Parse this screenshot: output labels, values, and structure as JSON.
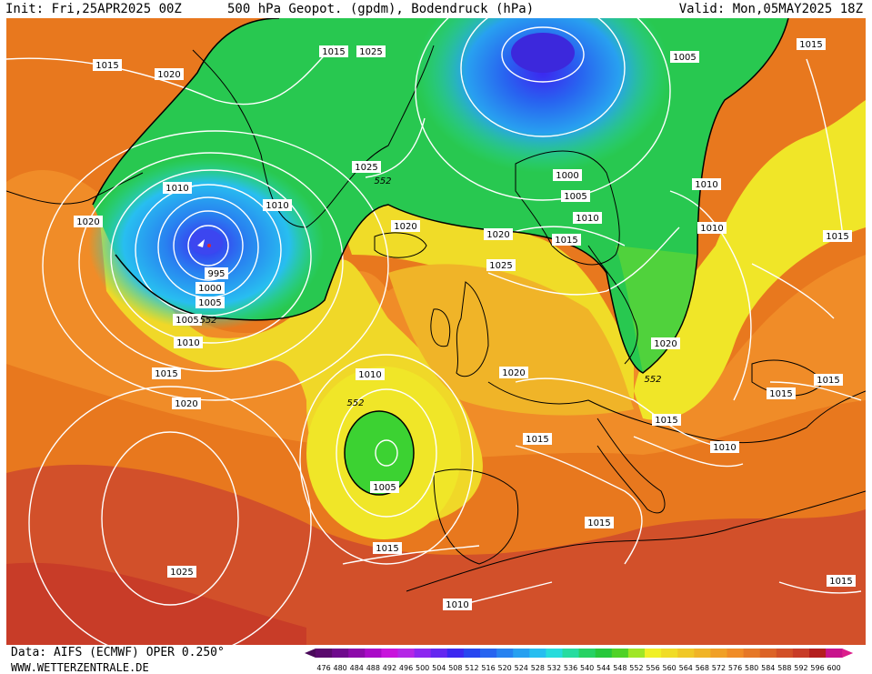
{
  "header": {
    "init": "Init: Fri,25APR2025 00Z",
    "title": "500 hPa Geopot. (gpdm), Bodendruck (hPa)",
    "valid": "Valid: Mon,05MAY2025 18Z"
  },
  "footer": {
    "source": "Data: AIFS (ECMWF) OPER 0.250°",
    "website": "WWW.WETTERZENTRALE.DE"
  },
  "legend": {
    "values": [
      "476",
      "480",
      "484",
      "488",
      "492",
      "496",
      "500",
      "504",
      "508",
      "512",
      "516",
      "520",
      "524",
      "528",
      "532",
      "536",
      "540",
      "544",
      "548",
      "552",
      "556",
      "560",
      "564",
      "568",
      "572",
      "576",
      "580",
      "584",
      "588",
      "592",
      "596",
      "600"
    ],
    "colors": [
      "#5a0a6e",
      "#6e0a8c",
      "#8c0aaa",
      "#aa0ac8",
      "#c814dc",
      "#b428e6",
      "#8c28f0",
      "#6428f0",
      "#3c28f0",
      "#2846f0",
      "#2864f0",
      "#2882f0",
      "#28a0f0",
      "#28bef0",
      "#28dcdc",
      "#28dca0",
      "#28d264",
      "#28c83c",
      "#50d228",
      "#a0e628",
      "#f0f028",
      "#f0dc28",
      "#f0c828",
      "#f0b428",
      "#f0a028",
      "#f08c28",
      "#e67828",
      "#dc6428",
      "#d25028",
      "#c83c28",
      "#b41e1e",
      "#c8148c"
    ]
  },
  "isobars": [
    "1015",
    "1020",
    "1015",
    "1025",
    "1020",
    "1010",
    "1010",
    "1005",
    "995",
    "1000",
    "1005",
    "1010",
    "1015",
    "1020",
    "1025",
    "1020",
    "1010",
    "1020",
    "1025",
    "1020",
    "1015",
    "1005",
    "1000",
    "1005",
    "1010",
    "1015",
    "1010",
    "1010",
    "1020",
    "1015",
    "1015",
    "1015",
    "1010",
    "1015",
    "1010",
    "1005",
    "1015",
    "1025",
    "1010",
    "1015",
    "1015",
    "1015",
    "1015",
    "1010"
  ],
  "contour_labels": [
    "552",
    "552",
    "552",
    "552"
  ]
}
